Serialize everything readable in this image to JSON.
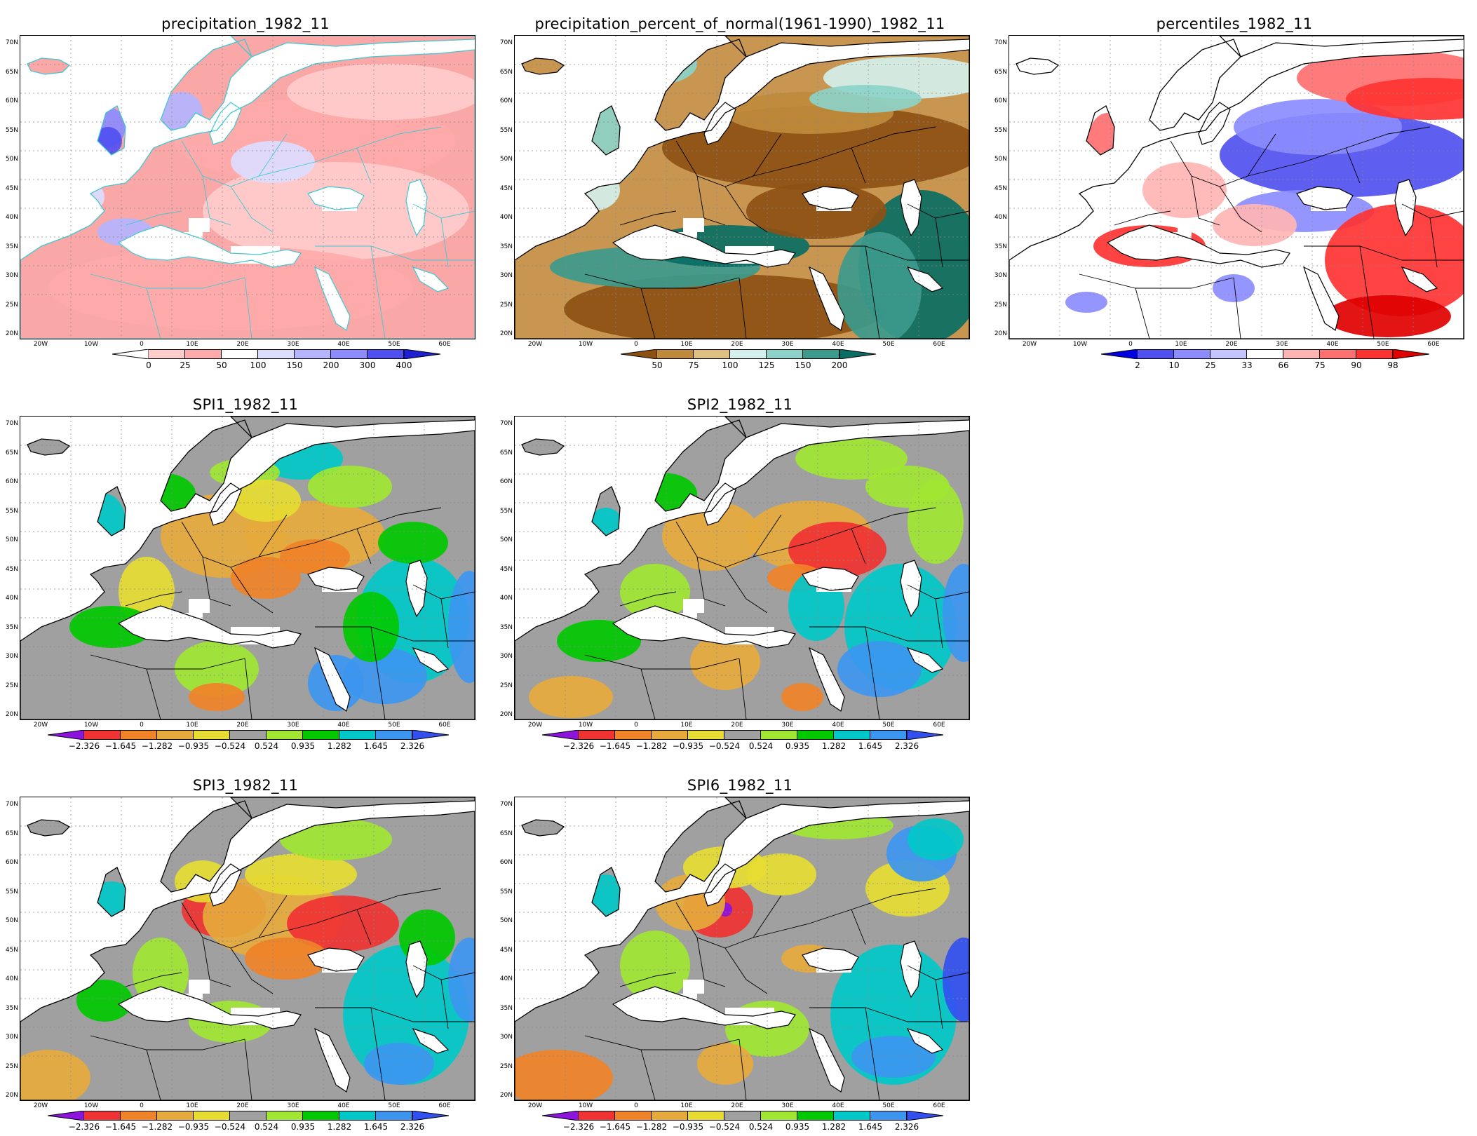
{
  "panels": [
    {
      "id": "precip",
      "title": "precipitation_1982_11",
      "col": 0,
      "row": 0,
      "colors": [
        "#ffffff",
        "#ffcccc",
        "#ffaaaa",
        "#ffffff",
        "#dcdcff",
        "#b4b4ff",
        "#8c8cff",
        "#5050f0",
        "#1e1ed2"
      ],
      "labels": [
        "0",
        "25",
        "50",
        "100",
        "150",
        "200",
        "300",
        "400"
      ],
      "base": "#f9a7a7",
      "style": "precip"
    },
    {
      "id": "pnorm",
      "title": "precipitation_percent_of_normal(1961-1990)_1982_11",
      "col": 1,
      "row": 0,
      "colors": [
        "#8c5014",
        "#c08a3c",
        "#e0c080",
        "#d4f0ec",
        "#8cd2c8",
        "#3c9a8c",
        "#0a6e64"
      ],
      "labels": [
        "50",
        "75",
        "100",
        "125",
        "150",
        "200"
      ],
      "base": "#c89650",
      "style": "pnorm"
    },
    {
      "id": "pct",
      "title": "percentiles_1982_11",
      "col": 2,
      "row": 0,
      "colors": [
        "#0000e0",
        "#5050f0",
        "#8c8cff",
        "#c4c4ff",
        "#ffffff",
        "#ffb4b4",
        "#ff7070",
        "#ff3232",
        "#e00000"
      ],
      "labels": [
        "2",
        "10",
        "25",
        "33",
        "66",
        "75",
        "90",
        "98"
      ],
      "base": "#ffffff",
      "style": "pct"
    },
    {
      "id": "spi1",
      "title": "SPI1_1982_11",
      "col": 0,
      "row": 1,
      "style": "spi",
      "base": "#a0a0a0"
    },
    {
      "id": "spi2",
      "title": "SPI2_1982_11",
      "col": 1,
      "row": 1,
      "style": "spi",
      "base": "#a0a0a0"
    },
    {
      "id": "spi3",
      "title": "SPI3_1982_11",
      "col": 0,
      "row": 2,
      "style": "spi",
      "base": "#a0a0a0"
    },
    {
      "id": "spi6",
      "title": "SPI6_1982_11",
      "col": 1,
      "row": 2,
      "style": "spi",
      "base": "#a0a0a0"
    }
  ],
  "spi_colorbar": {
    "colors": [
      "#8c14dc",
      "#f03232",
      "#f08228",
      "#e6aa3c",
      "#e6dc32",
      "#a0a0a0",
      "#a0e632",
      "#00c800",
      "#00c8c8",
      "#3c96f0",
      "#3250f0"
    ],
    "labels": [
      "−2.326",
      "−1.645",
      "−1.282",
      "−0.935",
      "−0.524",
      "0.524",
      "0.935",
      "1.282",
      "1.645",
      "2.326"
    ]
  },
  "lat_labels": [
    "70N",
    "65N",
    "60N",
    "55N",
    "50N",
    "45N",
    "40N",
    "35N",
    "30N",
    "25N",
    "20N"
  ],
  "lon_labels": [
    "20W",
    "10W",
    "0",
    "10E",
    "20E",
    "30E",
    "40E",
    "50E",
    "60E"
  ]
}
